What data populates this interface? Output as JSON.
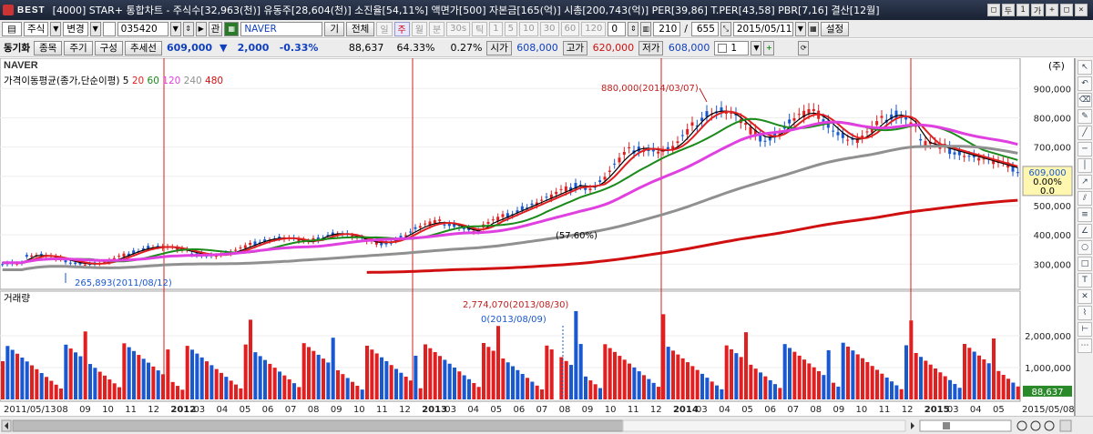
{
  "titlebar": {
    "logo": "BEST",
    "text": "[4000] STAR+ 통합차트 - 주식수[32,963(천)] 유동주[28,604(천)] 소진율[54,11%] 액면가[500] 자본금[165(억)] 시총[200,743(억)] PER[39,86] T.PER[43,58] PBR[7,16] 결산[12월]",
    "window_buttons": [
      "□",
      "두",
      "1",
      "가",
      "+",
      "□",
      "×"
    ]
  },
  "toolbar1": {
    "market_label": "주식",
    "change_label": "변경",
    "code_value": "035420",
    "rel_button": "관",
    "name_value": "NAVER",
    "gi_button": "기",
    "all_button": "전체",
    "timeframes": [
      "일",
      "주",
      "월",
      "분",
      "30s",
      "틱"
    ],
    "active_timeframe": "주",
    "intervals": [
      "1",
      "5",
      "10",
      "30",
      "60",
      "120"
    ],
    "count_zero": "0",
    "count1": "210",
    "slash": "/",
    "count2": "655",
    "date_value": "2015/05/11",
    "settings_button": "설정"
  },
  "toolbar2": {
    "sync_label": "동기화",
    "item_button": "종목",
    "period_button": "주기",
    "compose_button": "구성",
    "trend_button": "추세선",
    "price": "609,000",
    "price_arrow": "▼",
    "change": "2,000",
    "change_pct": "-0.33%",
    "volume": "88,637",
    "ratio1": "64.33%",
    "ratio2": "0.27%",
    "open_label": "시가",
    "open": "608,000",
    "high_label": "고가",
    "high": "620,000",
    "low_label": "저가",
    "low": "608,000",
    "multiplier": "1"
  },
  "chart": {
    "stock_name": "NAVER",
    "unit_label": "(주)",
    "ma_label": "가격이동평균(종가,단순이평)",
    "ma_periods": [
      "5",
      "20",
      "60",
      "120",
      "240",
      "480"
    ],
    "vol_label": "거래량",
    "price_ticks": [
      "900,000",
      "800,000",
      "700,000",
      "600,000",
      "500,000",
      "400,000",
      "300,000"
    ],
    "vol_ticks": [
      "2,000,000",
      "1,000,000"
    ],
    "current_price_tag": "609,000",
    "current_pct_tag": "0.00%",
    "current_zero_tag": "0.0",
    "current_volume_tag": "88,637",
    "annotations": {
      "high": "880,000(2014/03/07)",
      "low": "265,893(2011/08/12)",
      "mid": "(57.60%)",
      "vol_high": "2,774,070(2013/08/30)",
      "vol_low": "0(2013/08/09)"
    },
    "x_labels": [
      "2011/05/13",
      "08",
      "09",
      "10",
      "11",
      "12",
      "2012",
      "03",
      "04",
      "05",
      "06",
      "07",
      "08",
      "09",
      "10",
      "11",
      "12",
      "2013",
      "03",
      "04",
      "05",
      "06",
      "07",
      "08",
      "09",
      "10",
      "11",
      "12",
      "2014",
      "03",
      "04",
      "05",
      "06",
      "07",
      "08",
      "09",
      "10",
      "11",
      "12",
      "2015",
      "03",
      "04",
      "05",
      "2015/05/08"
    ],
    "colors": {
      "up": "#e02020",
      "down": "#1a58d0",
      "ma5": "#000000",
      "ma20": "#e02020",
      "ma60": "#1a8a1a",
      "ma120": "#e040e0",
      "ma240": "#909090",
      "ma480": "#d01010"
    }
  }
}
